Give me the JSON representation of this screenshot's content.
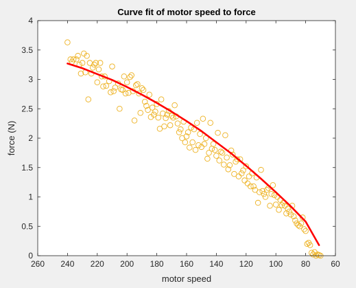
{
  "chart_data": {
    "type": "scatter",
    "title": "Curve fit of motor speed to force",
    "xlabel": "motor speed",
    "ylabel": "force (N)",
    "xlim": [
      260,
      60
    ],
    "ylim": [
      0,
      4
    ],
    "x_reversed": true,
    "xticks": [
      "260",
      "240",
      "220",
      "200",
      "180",
      "160",
      "140",
      "120",
      "100",
      "80",
      "60"
    ],
    "yticks": [
      "0",
      "0.5",
      "1",
      "1.5",
      "2",
      "2.5",
      "3",
      "3.5",
      "4"
    ],
    "grid": false,
    "series": [
      {
        "type": "scatter",
        "marker": "open-circle",
        "color": "#EDB120",
        "points": [
          [
            240,
            3.63
          ],
          [
            238,
            3.34
          ],
          [
            237,
            3.3
          ],
          [
            236,
            3.34
          ],
          [
            234,
            3.34
          ],
          [
            233,
            3.4
          ],
          [
            232,
            3.25
          ],
          [
            231,
            3.1
          ],
          [
            230,
            3.28
          ],
          [
            229,
            3.44
          ],
          [
            228,
            3.12
          ],
          [
            227,
            3.4
          ],
          [
            226,
            2.66
          ],
          [
            225,
            3.28
          ],
          [
            224,
            3.1
          ],
          [
            223,
            3.2
          ],
          [
            222,
            3.25
          ],
          [
            221,
            3.28
          ],
          [
            220,
            2.95
          ],
          [
            219,
            3.17
          ],
          [
            218,
            3.28
          ],
          [
            217,
            3.05
          ],
          [
            216,
            2.88
          ],
          [
            215,
            3.05
          ],
          [
            214,
            2.89
          ],
          [
            212,
            2.97
          ],
          [
            211,
            2.78
          ],
          [
            210,
            3.22
          ],
          [
            209,
            2.8
          ],
          [
            208,
            2.86
          ],
          [
            206,
            2.93
          ],
          [
            205,
            2.5
          ],
          [
            204,
            2.83
          ],
          [
            203,
            2.82
          ],
          [
            202,
            3.05
          ],
          [
            201,
            2.76
          ],
          [
            200,
            2.95
          ],
          [
            199,
            2.77
          ],
          [
            198,
            3.04
          ],
          [
            197,
            3.07
          ],
          [
            196,
            2.8
          ],
          [
            195,
            2.3
          ],
          [
            194,
            2.9
          ],
          [
            193,
            2.92
          ],
          [
            192,
            2.76
          ],
          [
            191,
            2.43
          ],
          [
            190,
            2.85
          ],
          [
            189,
            2.82
          ],
          [
            188,
            2.62
          ],
          [
            187,
            2.55
          ],
          [
            186,
            2.48
          ],
          [
            185,
            2.74
          ],
          [
            184,
            2.36
          ],
          [
            183,
            2.52
          ],
          [
            182,
            2.4
          ],
          [
            181,
            2.45
          ],
          [
            180,
            2.58
          ],
          [
            179,
            2.35
          ],
          [
            178,
            2.16
          ],
          [
            177,
            2.66
          ],
          [
            176,
            2.42
          ],
          [
            175,
            2.2
          ],
          [
            174,
            2.34
          ],
          [
            173,
            2.4
          ],
          [
            172,
            2.46
          ],
          [
            171,
            2.22
          ],
          [
            170,
            2.38
          ],
          [
            169,
            2.35
          ],
          [
            168,
            2.56
          ],
          [
            167,
            2.37
          ],
          [
            166,
            2.25
          ],
          [
            165,
            2.1
          ],
          [
            164,
            2.15
          ],
          [
            163,
            2.0
          ],
          [
            162,
            2.28
          ],
          [
            161,
            1.93
          ],
          [
            160,
            2.03
          ],
          [
            159,
            2.1
          ],
          [
            158,
            1.84
          ],
          [
            157,
            2.18
          ],
          [
            156,
            1.93
          ],
          [
            155,
            2.15
          ],
          [
            154,
            1.8
          ],
          [
            153,
            2.26
          ],
          [
            152,
            1.88
          ],
          [
            151,
            2.07
          ],
          [
            150,
            1.85
          ],
          [
            149,
            2.33
          ],
          [
            148,
            1.9
          ],
          [
            147,
            2.0
          ],
          [
            146,
            1.65
          ],
          [
            145,
            1.75
          ],
          [
            144,
            2.26
          ],
          [
            143,
            1.82
          ],
          [
            142,
            1.9
          ],
          [
            141,
            1.8
          ],
          [
            140,
            1.7
          ],
          [
            139,
            2.09
          ],
          [
            138,
            1.62
          ],
          [
            137,
            1.77
          ],
          [
            136,
            1.75
          ],
          [
            135,
            1.55
          ],
          [
            134,
            2.05
          ],
          [
            133,
            1.67
          ],
          [
            132,
            1.47
          ],
          [
            131,
            1.54
          ],
          [
            130,
            1.79
          ],
          [
            129,
            1.72
          ],
          [
            128,
            1.39
          ],
          [
            127,
            1.6
          ],
          [
            126,
            1.64
          ],
          [
            125,
            1.35
          ],
          [
            124,
            1.64
          ],
          [
            123,
            1.4
          ],
          [
            122,
            1.45
          ],
          [
            121,
            1.28
          ],
          [
            120,
            1.52
          ],
          [
            119,
            1.23
          ],
          [
            118,
            1.35
          ],
          [
            117,
            1.18
          ],
          [
            116,
            1.4
          ],
          [
            115,
            1.18
          ],
          [
            114,
            1.12
          ],
          [
            113,
            1.33
          ],
          [
            112,
            0.9
          ],
          [
            111,
            1.08
          ],
          [
            110,
            1.46
          ],
          [
            109,
            1.1
          ],
          [
            108,
            1.05
          ],
          [
            107,
            1.0
          ],
          [
            106,
            1.12
          ],
          [
            105,
            1.15
          ],
          [
            104,
            0.85
          ],
          [
            103,
            1.05
          ],
          [
            102,
            1.2
          ],
          [
            101,
            1.03
          ],
          [
            100,
            0.87
          ],
          [
            99,
            1.0
          ],
          [
            98,
            0.78
          ],
          [
            97,
            0.95
          ],
          [
            96,
            0.86
          ],
          [
            95,
            0.9
          ],
          [
            94,
            0.85
          ],
          [
            93,
            0.72
          ],
          [
            92,
            0.8
          ],
          [
            91,
            0.75
          ],
          [
            90,
            0.7
          ],
          [
            89,
            0.85
          ],
          [
            88,
            0.67
          ],
          [
            87,
            0.6
          ],
          [
            86,
            0.55
          ],
          [
            85,
            0.52
          ],
          [
            84,
            0.5
          ],
          [
            83,
            0.55
          ],
          [
            82,
            0.65
          ],
          [
            81,
            0.45
          ],
          [
            80,
            0.42
          ],
          [
            79,
            0.2
          ],
          [
            78,
            0.22
          ],
          [
            77,
            0.18
          ],
          [
            76,
            0.05
          ],
          [
            75,
            0.02
          ],
          [
            74,
            0.06
          ],
          [
            73,
            0.0
          ],
          [
            72,
            0.02
          ],
          [
            71,
            0.01
          ],
          [
            70,
            0.0
          ]
        ]
      },
      {
        "type": "line",
        "color": "#FF0000",
        "x": [
          240,
          230,
          220,
          210,
          200,
          190,
          180,
          170,
          160,
          150,
          140,
          130,
          120,
          110,
          100,
          90,
          80,
          71
        ],
        "y": [
          3.27,
          3.19,
          3.09,
          2.99,
          2.87,
          2.74,
          2.6,
          2.45,
          2.29,
          2.12,
          1.93,
          1.74,
          1.53,
          1.31,
          1.08,
          0.84,
          0.58,
          0.18
        ]
      }
    ]
  }
}
